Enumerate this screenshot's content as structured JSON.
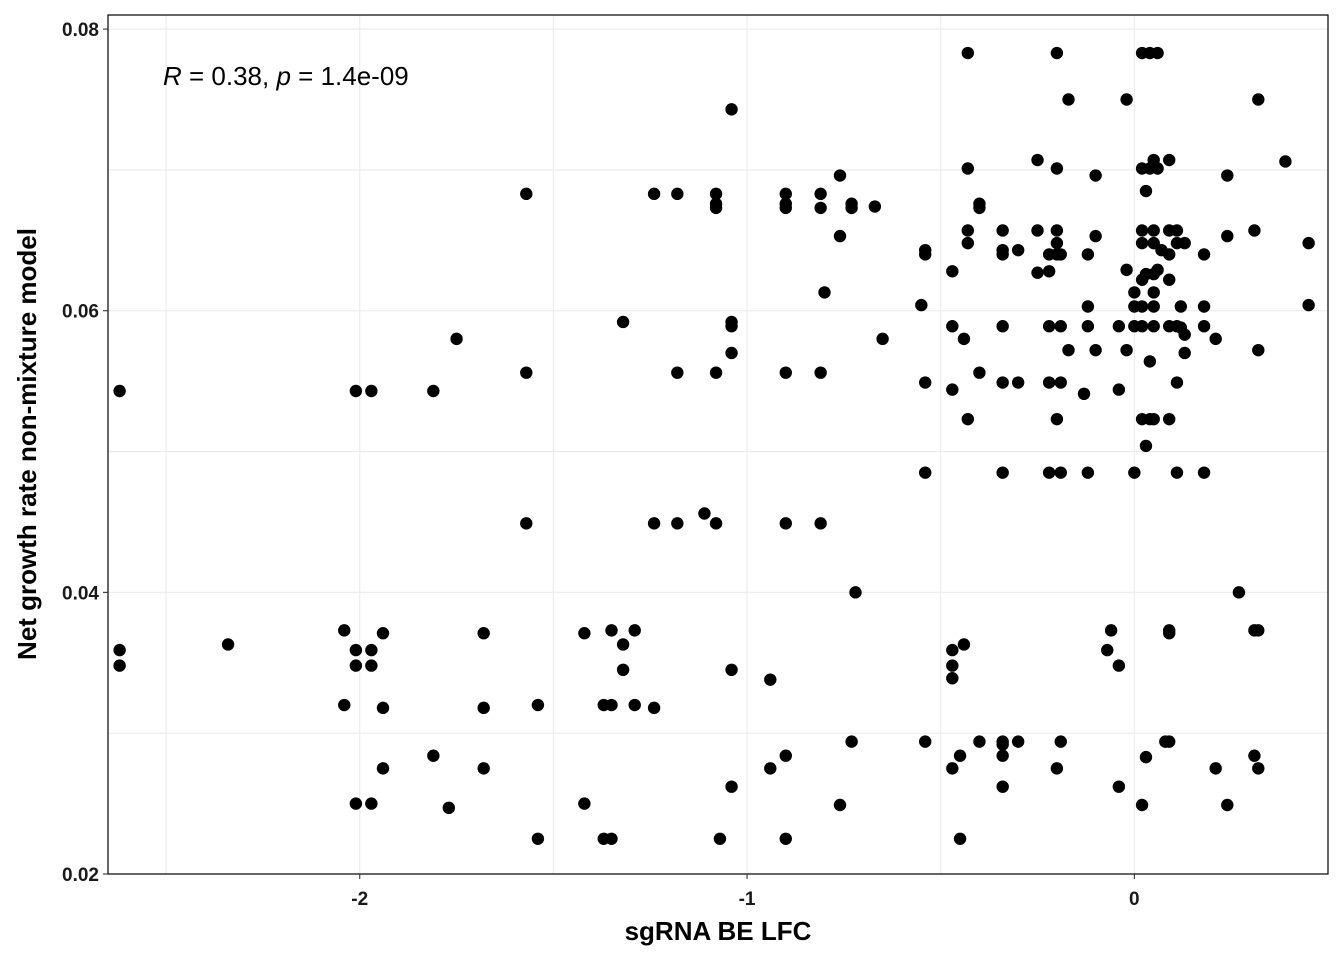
{
  "chart_data": {
    "type": "scatter",
    "title": "",
    "xlabel": "sgRNA BE LFC",
    "ylabel": "Net growth rate non-mixture model",
    "xlim": [
      -2.65,
      0.5
    ],
    "ylim": [
      0.02,
      0.081
    ],
    "x_ticks": [
      -2,
      -1,
      0
    ],
    "x_tick_labels": [
      "-2",
      "-1",
      "0"
    ],
    "y_ticks": [
      0.02,
      0.04,
      0.06,
      0.08
    ],
    "y_tick_labels": [
      "0.02",
      "0.04",
      "0.06",
      "0.08"
    ],
    "grid": true,
    "legend": "none",
    "point_color": "#000000",
    "annotation": {
      "r_symbol": "R",
      "r_text": " = 0.38, ",
      "p_symbol": "p",
      "p_text": " = 1.4e-09"
    },
    "points": [
      [
        -2.62,
        0.0543
      ],
      [
        -2.62,
        0.0359
      ],
      [
        -2.62,
        0.0348
      ],
      [
        -2.34,
        0.0363
      ],
      [
        -2.04,
        0.0373
      ],
      [
        -2.01,
        0.0543
      ],
      [
        -2.01,
        0.0359
      ],
      [
        -2.01,
        0.0348
      ],
      [
        -2.04,
        0.032
      ],
      [
        -2.01,
        0.025
      ],
      [
        -1.97,
        0.0543
      ],
      [
        -1.97,
        0.0359
      ],
      [
        -1.97,
        0.0348
      ],
      [
        -1.97,
        0.025
      ],
      [
        -1.94,
        0.0371
      ],
      [
        -1.94,
        0.0318
      ],
      [
        -1.94,
        0.0275
      ],
      [
        -1.81,
        0.0543
      ],
      [
        -1.81,
        0.0284
      ],
      [
        -1.77,
        0.0247
      ],
      [
        -1.75,
        0.058
      ],
      [
        -1.68,
        0.0371
      ],
      [
        -1.68,
        0.0318
      ],
      [
        -1.68,
        0.0275
      ],
      [
        -1.57,
        0.0683
      ],
      [
        -1.57,
        0.0556
      ],
      [
        -1.57,
        0.0449
      ],
      [
        -1.54,
        0.032
      ],
      [
        -1.54,
        0.0225
      ],
      [
        -1.42,
        0.0371
      ],
      [
        -1.42,
        0.025
      ],
      [
        -1.37,
        0.032
      ],
      [
        -1.37,
        0.0225
      ],
      [
        -1.35,
        0.0373
      ],
      [
        -1.35,
        0.032
      ],
      [
        -1.35,
        0.0225
      ],
      [
        -1.32,
        0.0592
      ],
      [
        -1.32,
        0.0363
      ],
      [
        -1.32,
        0.0345
      ],
      [
        -1.29,
        0.0373
      ],
      [
        -1.29,
        0.032
      ],
      [
        -1.24,
        0.0683
      ],
      [
        -1.24,
        0.0449
      ],
      [
        -1.24,
        0.0318
      ],
      [
        -1.18,
        0.0683
      ],
      [
        -1.18,
        0.0556
      ],
      [
        -1.18,
        0.0449
      ],
      [
        -1.11,
        0.0456
      ],
      [
        -1.08,
        0.0683
      ],
      [
        -1.08,
        0.0676
      ],
      [
        -1.08,
        0.0673
      ],
      [
        -1.08,
        0.0556
      ],
      [
        -1.08,
        0.0449
      ],
      [
        -1.07,
        0.0225
      ],
      [
        -1.04,
        0.0743
      ],
      [
        -1.04,
        0.0592
      ],
      [
        -1.04,
        0.0589
      ],
      [
        -1.04,
        0.057
      ],
      [
        -1.04,
        0.0345
      ],
      [
        -1.04,
        0.0262
      ],
      [
        -0.94,
        0.0338
      ],
      [
        -0.94,
        0.0275
      ],
      [
        -0.9,
        0.0683
      ],
      [
        -0.9,
        0.0676
      ],
      [
        -0.9,
        0.0673
      ],
      [
        -0.9,
        0.0556
      ],
      [
        -0.9,
        0.0449
      ],
      [
        -0.9,
        0.0284
      ],
      [
        -0.9,
        0.0225
      ],
      [
        -0.81,
        0.0683
      ],
      [
        -0.81,
        0.0673
      ],
      [
        -0.81,
        0.0556
      ],
      [
        -0.81,
        0.0449
      ],
      [
        -0.8,
        0.0613
      ],
      [
        -0.76,
        0.0696
      ],
      [
        -0.76,
        0.0653
      ],
      [
        -0.76,
        0.0249
      ],
      [
        -0.73,
        0.0676
      ],
      [
        -0.73,
        0.0673
      ],
      [
        -0.72,
        0.04
      ],
      [
        -0.73,
        0.0294
      ],
      [
        -0.67,
        0.0674
      ],
      [
        -0.65,
        0.058
      ],
      [
        -0.55,
        0.0604
      ],
      [
        -0.54,
        0.0643
      ],
      [
        -0.54,
        0.064
      ],
      [
        -0.54,
        0.0549
      ],
      [
        -0.54,
        0.0485
      ],
      [
        -0.54,
        0.0294
      ],
      [
        -0.47,
        0.0628
      ],
      [
        -0.47,
        0.0589
      ],
      [
        -0.47,
        0.0544
      ],
      [
        -0.47,
        0.0359
      ],
      [
        -0.47,
        0.0348
      ],
      [
        -0.47,
        0.0339
      ],
      [
        -0.47,
        0.0275
      ],
      [
        -0.45,
        0.0284
      ],
      [
        -0.45,
        0.0225
      ],
      [
        -0.44,
        0.058
      ],
      [
        -0.44,
        0.0363
      ],
      [
        -0.43,
        0.0783
      ],
      [
        -0.43,
        0.0701
      ],
      [
        -0.43,
        0.0657
      ],
      [
        -0.43,
        0.0648
      ],
      [
        -0.43,
        0.0523
      ],
      [
        -0.4,
        0.0676
      ],
      [
        -0.4,
        0.0673
      ],
      [
        -0.4,
        0.0556
      ],
      [
        -0.4,
        0.0294
      ],
      [
        -0.34,
        0.0657
      ],
      [
        -0.34,
        0.0643
      ],
      [
        -0.34,
        0.064
      ],
      [
        -0.34,
        0.0589
      ],
      [
        -0.34,
        0.0549
      ],
      [
        -0.34,
        0.0485
      ],
      [
        -0.34,
        0.0294
      ],
      [
        -0.34,
        0.0292
      ],
      [
        -0.34,
        0.0284
      ],
      [
        -0.34,
        0.0262
      ],
      [
        -0.3,
        0.0643
      ],
      [
        -0.3,
        0.0549
      ],
      [
        -0.3,
        0.0294
      ],
      [
        -0.25,
        0.0707
      ],
      [
        -0.25,
        0.0657
      ],
      [
        -0.25,
        0.0627
      ],
      [
        -0.22,
        0.064
      ],
      [
        -0.22,
        0.0628
      ],
      [
        -0.22,
        0.0589
      ],
      [
        -0.22,
        0.0549
      ],
      [
        -0.22,
        0.0485
      ],
      [
        -0.2,
        0.0783
      ],
      [
        -0.2,
        0.0701
      ],
      [
        -0.2,
        0.0657
      ],
      [
        -0.2,
        0.0648
      ],
      [
        -0.2,
        0.064
      ],
      [
        -0.2,
        0.0523
      ],
      [
        -0.2,
        0.0275
      ],
      [
        -0.19,
        0.064
      ],
      [
        -0.19,
        0.0589
      ],
      [
        -0.19,
        0.0549
      ],
      [
        -0.19,
        0.0485
      ],
      [
        -0.19,
        0.0294
      ],
      [
        -0.17,
        0.075
      ],
      [
        -0.17,
        0.0572
      ],
      [
        -0.13,
        0.0541
      ],
      [
        -0.12,
        0.064
      ],
      [
        -0.12,
        0.0589
      ],
      [
        -0.12,
        0.0485
      ],
      [
        -0.12,
        0.0603
      ],
      [
        -0.1,
        0.0696
      ],
      [
        -0.1,
        0.0653
      ],
      [
        -0.1,
        0.0572
      ],
      [
        -0.07,
        0.0359
      ],
      [
        -0.06,
        0.0373
      ],
      [
        -0.04,
        0.0589
      ],
      [
        -0.04,
        0.0544
      ],
      [
        -0.04,
        0.0348
      ],
      [
        -0.04,
        0.0262
      ],
      [
        -0.02,
        0.075
      ],
      [
        -0.02,
        0.0629
      ],
      [
        -0.02,
        0.0572
      ],
      [
        0.0,
        0.0613
      ],
      [
        0.0,
        0.0603
      ],
      [
        0.0,
        0.0589
      ],
      [
        0.0,
        0.0485
      ],
      [
        0.02,
        0.0783
      ],
      [
        0.02,
        0.0701
      ],
      [
        0.02,
        0.0657
      ],
      [
        0.02,
        0.0648
      ],
      [
        0.02,
        0.0622
      ],
      [
        0.02,
        0.0603
      ],
      [
        0.02,
        0.0589
      ],
      [
        0.02,
        0.0523
      ],
      [
        0.02,
        0.0249
      ],
      [
        0.03,
        0.0685
      ],
      [
        0.03,
        0.0626
      ],
      [
        0.03,
        0.0504
      ],
      [
        0.03,
        0.0283
      ],
      [
        0.04,
        0.0783
      ],
      [
        0.04,
        0.0701
      ],
      [
        0.04,
        0.0564
      ],
      [
        0.04,
        0.0523
      ],
      [
        0.05,
        0.0707
      ],
      [
        0.05,
        0.0657
      ],
      [
        0.05,
        0.0648
      ],
      [
        0.05,
        0.0626
      ],
      [
        0.05,
        0.0613
      ],
      [
        0.05,
        0.0603
      ],
      [
        0.05,
        0.0589
      ],
      [
        0.05,
        0.0523
      ],
      [
        0.06,
        0.0783
      ],
      [
        0.06,
        0.0701
      ],
      [
        0.06,
        0.0629
      ],
      [
        0.07,
        0.0643
      ],
      [
        0.08,
        0.0294
      ],
      [
        0.09,
        0.0707
      ],
      [
        0.09,
        0.0657
      ],
      [
        0.09,
        0.064
      ],
      [
        0.09,
        0.0622
      ],
      [
        0.09,
        0.0589
      ],
      [
        0.09,
        0.0523
      ],
      [
        0.09,
        0.0373
      ],
      [
        0.09,
        0.0371
      ],
      [
        0.09,
        0.0294
      ],
      [
        0.11,
        0.0657
      ],
      [
        0.11,
        0.0648
      ],
      [
        0.11,
        0.0589
      ],
      [
        0.11,
        0.0549
      ],
      [
        0.11,
        0.0485
      ],
      [
        0.12,
        0.0603
      ],
      [
        0.12,
        0.0588
      ],
      [
        0.13,
        0.0648
      ],
      [
        0.13,
        0.0583
      ],
      [
        0.13,
        0.057
      ],
      [
        0.18,
        0.064
      ],
      [
        0.18,
        0.0603
      ],
      [
        0.18,
        0.0589
      ],
      [
        0.18,
        0.0485
      ],
      [
        0.21,
        0.058
      ],
      [
        0.21,
        0.0275
      ],
      [
        0.24,
        0.0696
      ],
      [
        0.24,
        0.0653
      ],
      [
        0.24,
        0.0249
      ],
      [
        0.27,
        0.04
      ],
      [
        0.31,
        0.0657
      ],
      [
        0.31,
        0.0373
      ],
      [
        0.31,
        0.0284
      ],
      [
        0.32,
        0.075
      ],
      [
        0.32,
        0.0572
      ],
      [
        0.32,
        0.0373
      ],
      [
        0.32,
        0.0275
      ],
      [
        0.39,
        0.0706
      ],
      [
        0.45,
        0.0648
      ],
      [
        0.45,
        0.0604
      ]
    ]
  }
}
